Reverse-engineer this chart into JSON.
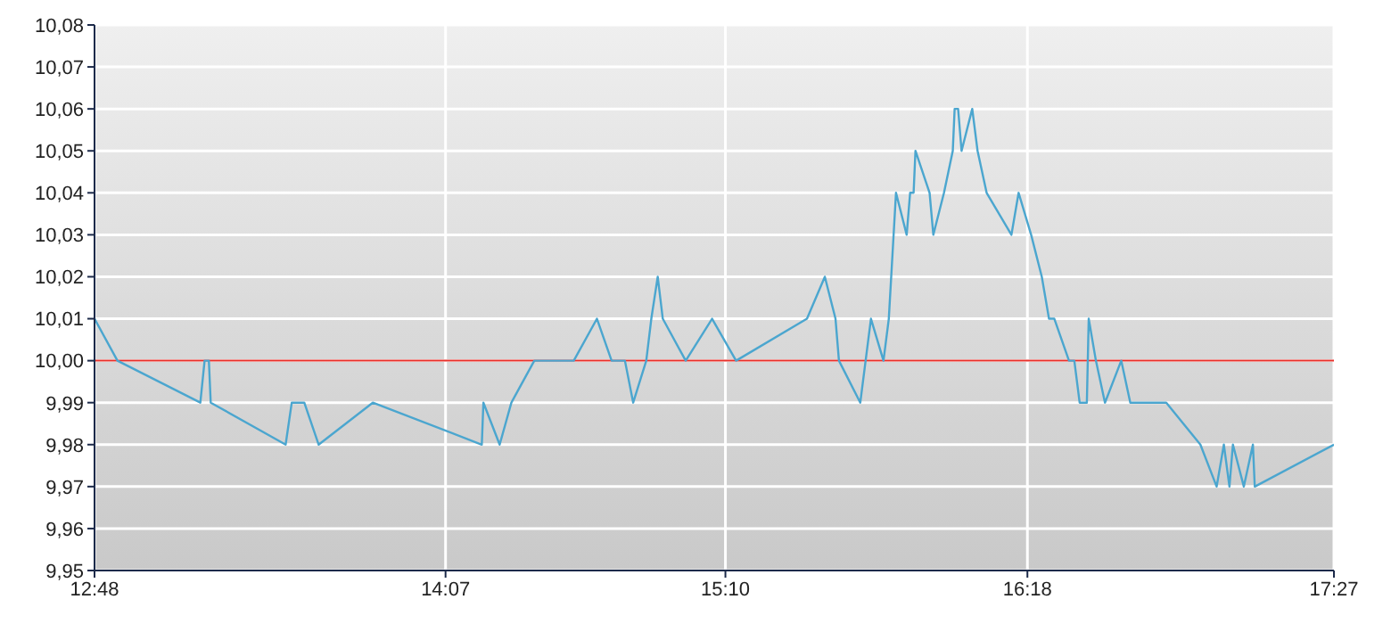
{
  "chart_data": {
    "type": "line",
    "x": [
      12.8,
      12.886,
      13.197,
      13.213,
      13.229,
      13.236,
      13.517,
      13.54,
      13.587,
      13.641,
      13.844,
      14.253,
      14.259,
      14.32,
      14.364,
      14.45,
      14.598,
      14.685,
      14.74,
      14.79,
      14.821,
      14.87,
      14.889,
      14.913,
      14.932,
      15.018,
      15.117,
      15.207,
      15.473,
      15.54,
      15.58,
      15.593,
      15.673,
      15.713,
      15.76,
      15.78,
      15.807,
      15.847,
      15.86,
      15.873,
      15.88,
      15.933,
      15.947,
      15.987,
      16.02,
      16.027,
      16.04,
      16.053,
      16.093,
      16.113,
      16.147,
      16.24,
      16.267,
      16.314,
      16.354,
      16.381,
      16.401,
      16.456,
      16.476,
      16.496,
      16.523,
      16.53,
      16.557,
      16.591,
      16.652,
      16.686,
      16.821,
      16.949,
      17.01,
      17.037,
      17.058,
      17.071,
      17.112,
      17.146,
      17.153,
      17.45
    ],
    "values": [
      10.01,
      10.0,
      9.99,
      10.0,
      10.0,
      9.99,
      9.98,
      9.99,
      9.99,
      9.98,
      9.99,
      9.98,
      9.99,
      9.98,
      9.99,
      10.0,
      10.0,
      10.01,
      10.0,
      10.0,
      9.99,
      10.0,
      10.01,
      10.02,
      10.01,
      10.0,
      10.01,
      10.0,
      10.01,
      10.02,
      10.01,
      10.0,
      9.99,
      10.01,
      10.0,
      10.01,
      10.04,
      10.03,
      10.04,
      10.04,
      10.05,
      10.04,
      10.03,
      10.04,
      10.05,
      10.06,
      10.06,
      10.05,
      10.06,
      10.05,
      10.04,
      10.03,
      10.04,
      10.03,
      10.02,
      10.01,
      10.01,
      10.0,
      10.0,
      9.99,
      9.99,
      10.01,
      10.0,
      9.99,
      10.0,
      9.99,
      9.99,
      9.98,
      9.97,
      9.98,
      9.97,
      9.98,
      9.97,
      9.98,
      9.97,
      9.98
    ],
    "color": "#4ba6cf",
    "xlim": [
      12.8,
      17.45
    ],
    "xticks": [
      {
        "value": 12.8,
        "label": "12:48"
      },
      {
        "value": 14.117,
        "label": "14:07"
      },
      {
        "value": 15.167,
        "label": "15:10"
      },
      {
        "value": 16.3,
        "label": "16:18"
      },
      {
        "value": 17.45,
        "label": "17:27"
      }
    ],
    "ylim": [
      9.95,
      10.08
    ],
    "yticks": [
      {
        "value": 9.95,
        "label": "9,95"
      },
      {
        "value": 9.96,
        "label": "9,96"
      },
      {
        "value": 9.97,
        "label": "9,97"
      },
      {
        "value": 9.98,
        "label": "9,98"
      },
      {
        "value": 9.99,
        "label": "9,99"
      },
      {
        "value": 10.0,
        "label": "10,00"
      },
      {
        "value": 10.01,
        "label": "10,01"
      },
      {
        "value": 10.02,
        "label": "10,02"
      },
      {
        "value": 10.03,
        "label": "10,03"
      },
      {
        "value": 10.04,
        "label": "10,04"
      },
      {
        "value": 10.05,
        "label": "10,05"
      },
      {
        "value": 10.06,
        "label": "10,06"
      },
      {
        "value": 10.07,
        "label": "10,07"
      },
      {
        "value": 10.08,
        "label": "10,08"
      }
    ],
    "ref_lines": [
      {
        "axis": "y",
        "value": 10.0,
        "color": "#e8302a"
      }
    ],
    "grid": true,
    "marker": "none",
    "line_style": "solid"
  }
}
